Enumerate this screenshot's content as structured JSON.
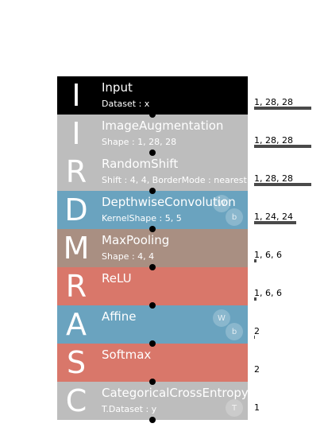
{
  "layers": [
    {
      "letter": "I",
      "name": "Input",
      "prop": "Dataset : x",
      "color": "#000000",
      "params": []
    },
    {
      "letter": "I",
      "name": "ImageAugmentation",
      "prop": "Shape : 1, 28, 28",
      "color": "#bdbdbd",
      "params": []
    },
    {
      "letter": "R",
      "name": "RandomShift",
      "prop": "Shift : 4, 4, BorderMode : nearest",
      "color": "#bdbdbd",
      "params": []
    },
    {
      "letter": "D",
      "name": "DepthwiseConvolution",
      "prop": "KernelShape : 5, 5",
      "color": "#6aa3bf",
      "params": [
        "W",
        "b"
      ]
    },
    {
      "letter": "M",
      "name": "MaxPooling",
      "prop": "Shape : 4, 4",
      "color": "#a98f82",
      "params": []
    },
    {
      "letter": "R",
      "name": "ReLU",
      "prop": "",
      "color": "#d9776a",
      "params": []
    },
    {
      "letter": "A",
      "name": "Affine",
      "prop": "",
      "color": "#6aa3bf",
      "params": [
        "W",
        "b"
      ]
    },
    {
      "letter": "S",
      "name": "Softmax",
      "prop": "",
      "color": "#d9776a",
      "params": []
    },
    {
      "letter": "C",
      "name": "CategoricalCrossEntropy",
      "prop": "T.Dataset : y",
      "color": "#bdbdbd",
      "params": [
        "T"
      ]
    }
  ],
  "outputs": [
    {
      "label": "1, 28, 28",
      "size": 1.0
    },
    {
      "label": "1, 28, 28",
      "size": 1.0
    },
    {
      "label": "1, 28, 28",
      "size": 1.0
    },
    {
      "label": "1, 24, 24",
      "size": 0.73
    },
    {
      "label": "1, 6, 6",
      "size": 0.04
    },
    {
      "label": "1, 6, 6",
      "size": 0.04
    },
    {
      "label": "2",
      "size": 0.005
    },
    {
      "label": "2",
      "size": 0
    },
    {
      "label": "1",
      "size": 0
    }
  ]
}
